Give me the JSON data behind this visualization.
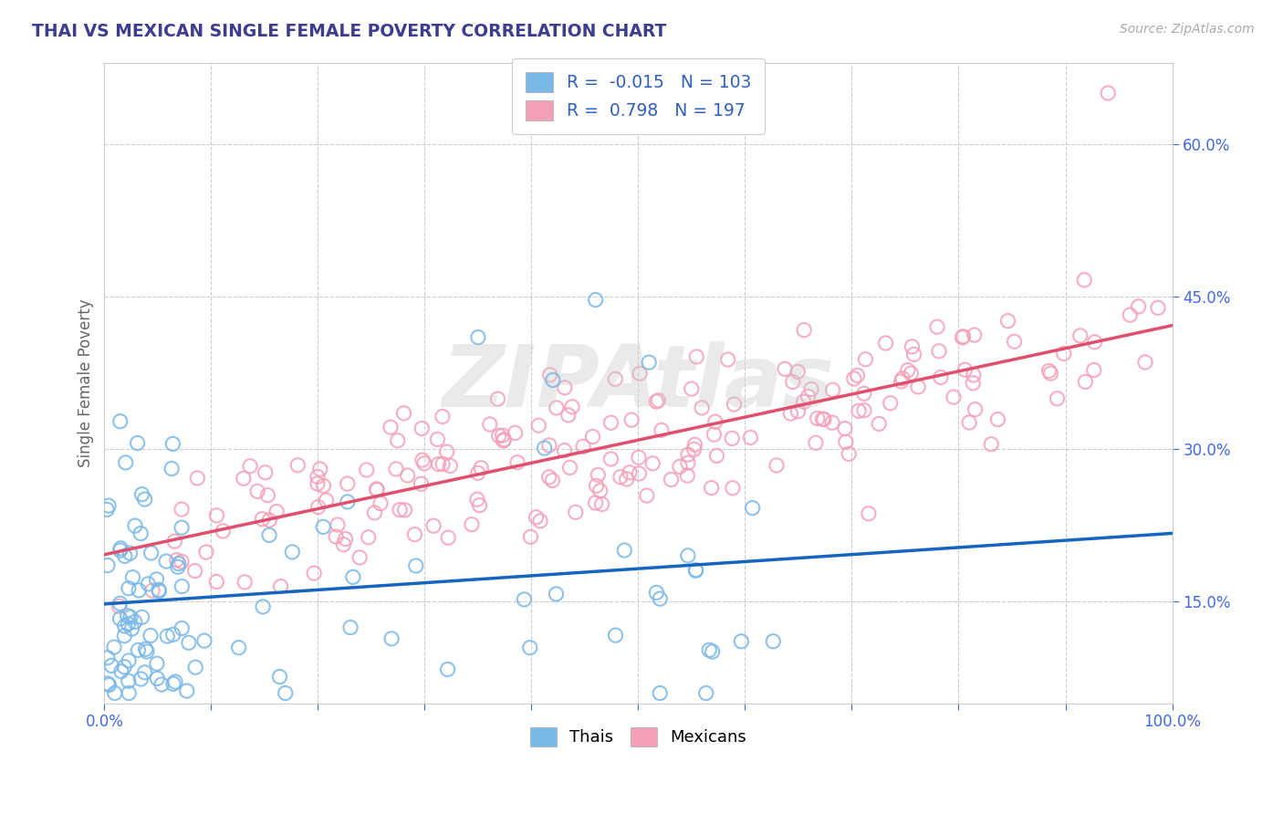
{
  "title": "THAI VS MEXICAN SINGLE FEMALE POVERTY CORRELATION CHART",
  "source": "Source: ZipAtlas.com",
  "ylabel": "Single Female Poverty",
  "legend_thai_R": "-0.015",
  "legend_thai_N": "103",
  "legend_mexican_R": "0.798",
  "legend_mexican_N": "197",
  "thai_color": "#7ab8e8",
  "mexican_color": "#f4a0b8",
  "thai_line_color": "#1565c0",
  "mexican_line_color": "#e0506e",
  "title_color": "#3d3d8f",
  "stat_color": "#3060c0",
  "grid_color": "#cccccc",
  "tick_color": "#4169E1",
  "watermark": "ZIPAtlas",
  "xlim": [
    0.0,
    1.0
  ],
  "ylim": [
    0.05,
    0.68
  ],
  "xticks": [
    0.0,
    0.1,
    0.2,
    0.3,
    0.4,
    0.5,
    0.6,
    0.7,
    0.8,
    0.9,
    1.0
  ],
  "yticks": [
    0.15,
    0.3,
    0.45,
    0.6
  ],
  "bottom_legend": [
    "Thais",
    "Mexicans"
  ]
}
